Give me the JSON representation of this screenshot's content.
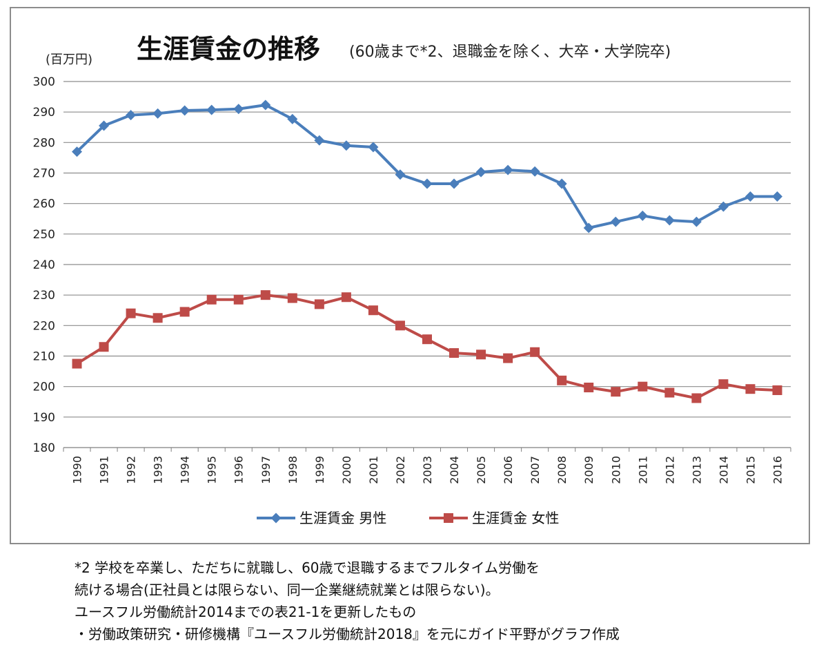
{
  "chart_data": {
    "type": "line",
    "title": "生涯賃金の推移",
    "subtitle": "(60歳まで*2、退職金を除く、大卒・大学院卒)",
    "ylabel": "(百万円)",
    "xlabel": "",
    "ylim": [
      180,
      300
    ],
    "ytick_step": 10,
    "grid": true,
    "legend_position": "bottom",
    "x": [
      "1990",
      "1991",
      "1992",
      "1993",
      "1994",
      "1995",
      "1996",
      "1997",
      "1998",
      "1999",
      "2000",
      "2001",
      "2002",
      "2003",
      "2004",
      "2005",
      "2006",
      "2007",
      "2008",
      "2009",
      "2010",
      "2011",
      "2012",
      "2013",
      "2014",
      "2015",
      "2016"
    ],
    "series": [
      {
        "name": "生涯賃金 男性",
        "color": "#4a7ebb",
        "marker": "diamond",
        "values": [
          277,
          285.5,
          289,
          289.5,
          290.5,
          290.7,
          291,
          292.3,
          287.7,
          280.7,
          279,
          278.5,
          269.5,
          266.5,
          266.5,
          270.3,
          271,
          270.5,
          266.5,
          252,
          254,
          256,
          254.5,
          254,
          259,
          262.3,
          262.3
        ]
      },
      {
        "name": "生涯賃金 女性",
        "color": "#be4b48",
        "marker": "square",
        "values": [
          207.5,
          213,
          224,
          222.5,
          224.5,
          228.5,
          228.5,
          230,
          229,
          227,
          229.3,
          225,
          220,
          215.5,
          211,
          210.5,
          209.3,
          211.3,
          202,
          199.7,
          198.3,
          200,
          198,
          196.2,
          200.8,
          199.2,
          198.8
        ]
      }
    ]
  },
  "footnotes": [
    "*2 学校を卒業し、ただちに就職し、60歳で退職するまでフルタイム労働を",
    "続ける場合(正社員とは限らない、同一企業継続就業とは限らない)。",
    "ユースフル労働統計2014までの表21-1を更新したもの",
    "・労働政策研究・研修機構『ユースフル労働統計2018』を元にガイド平野がグラフ作成"
  ]
}
